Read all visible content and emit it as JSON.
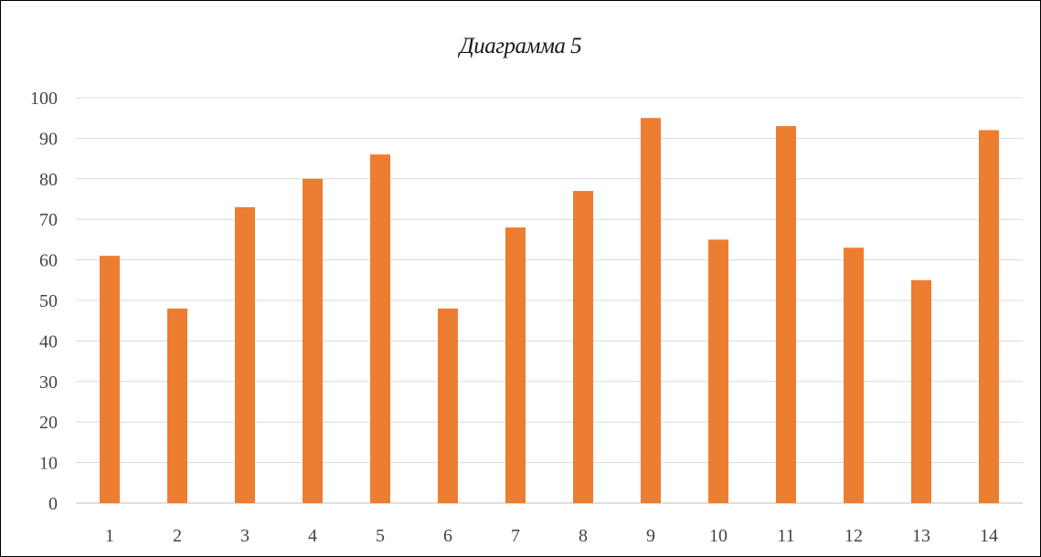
{
  "chart_data": {
    "type": "bar",
    "title": "Диаграмма 5",
    "xlabel": "",
    "ylabel": "",
    "categories": [
      "1",
      "2",
      "3",
      "4",
      "5",
      "6",
      "7",
      "8",
      "9",
      "10",
      "11",
      "12",
      "13",
      "14"
    ],
    "values": [
      61,
      48,
      73,
      80,
      86,
      48,
      68,
      77,
      95,
      65,
      93,
      63,
      55,
      92
    ],
    "ylim": [
      0,
      100
    ],
    "yticks": [
      "0",
      "10",
      "20",
      "30",
      "40",
      "50",
      "60",
      "70",
      "80",
      "90",
      "100"
    ],
    "grid": true,
    "legend": "none",
    "colors": {
      "bar": "#ED7D31",
      "grid": "#D9D9D9",
      "axis_text": "#444444"
    }
  }
}
